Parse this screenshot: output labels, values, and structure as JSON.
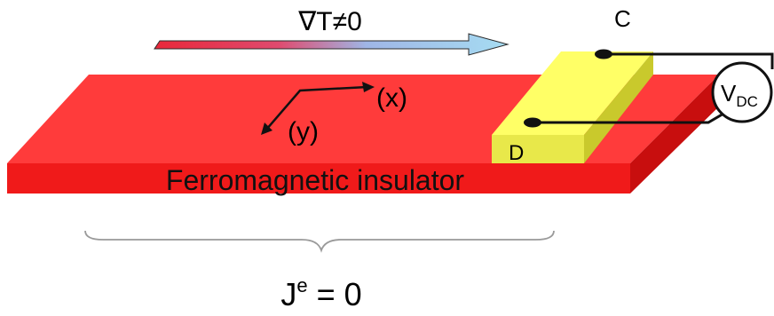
{
  "gradient_label": "∇T≠0",
  "material_label": "Ferromagnetic insulator",
  "axis_x_label": "(x)",
  "axis_y_label": "(y)",
  "contact_c_label": "C",
  "contact_d_label": "D",
  "voltmeter": {
    "main": "V",
    "sub": "DC"
  },
  "current_label": {
    "main": "J",
    "sup": "e",
    "rest": " = 0"
  },
  "colors": {
    "slab_top": "#ff3b3b",
    "slab_front": "#f01a1a",
    "slab_side": "#c80e0e",
    "contact_top": "#ffff66",
    "contact_front": "#e8e84a",
    "contact_side": "#c9c92c",
    "gradient_hot": "#e8283a",
    "gradient_cold": "#a6dcf2",
    "brace": "#9a9a9a"
  }
}
